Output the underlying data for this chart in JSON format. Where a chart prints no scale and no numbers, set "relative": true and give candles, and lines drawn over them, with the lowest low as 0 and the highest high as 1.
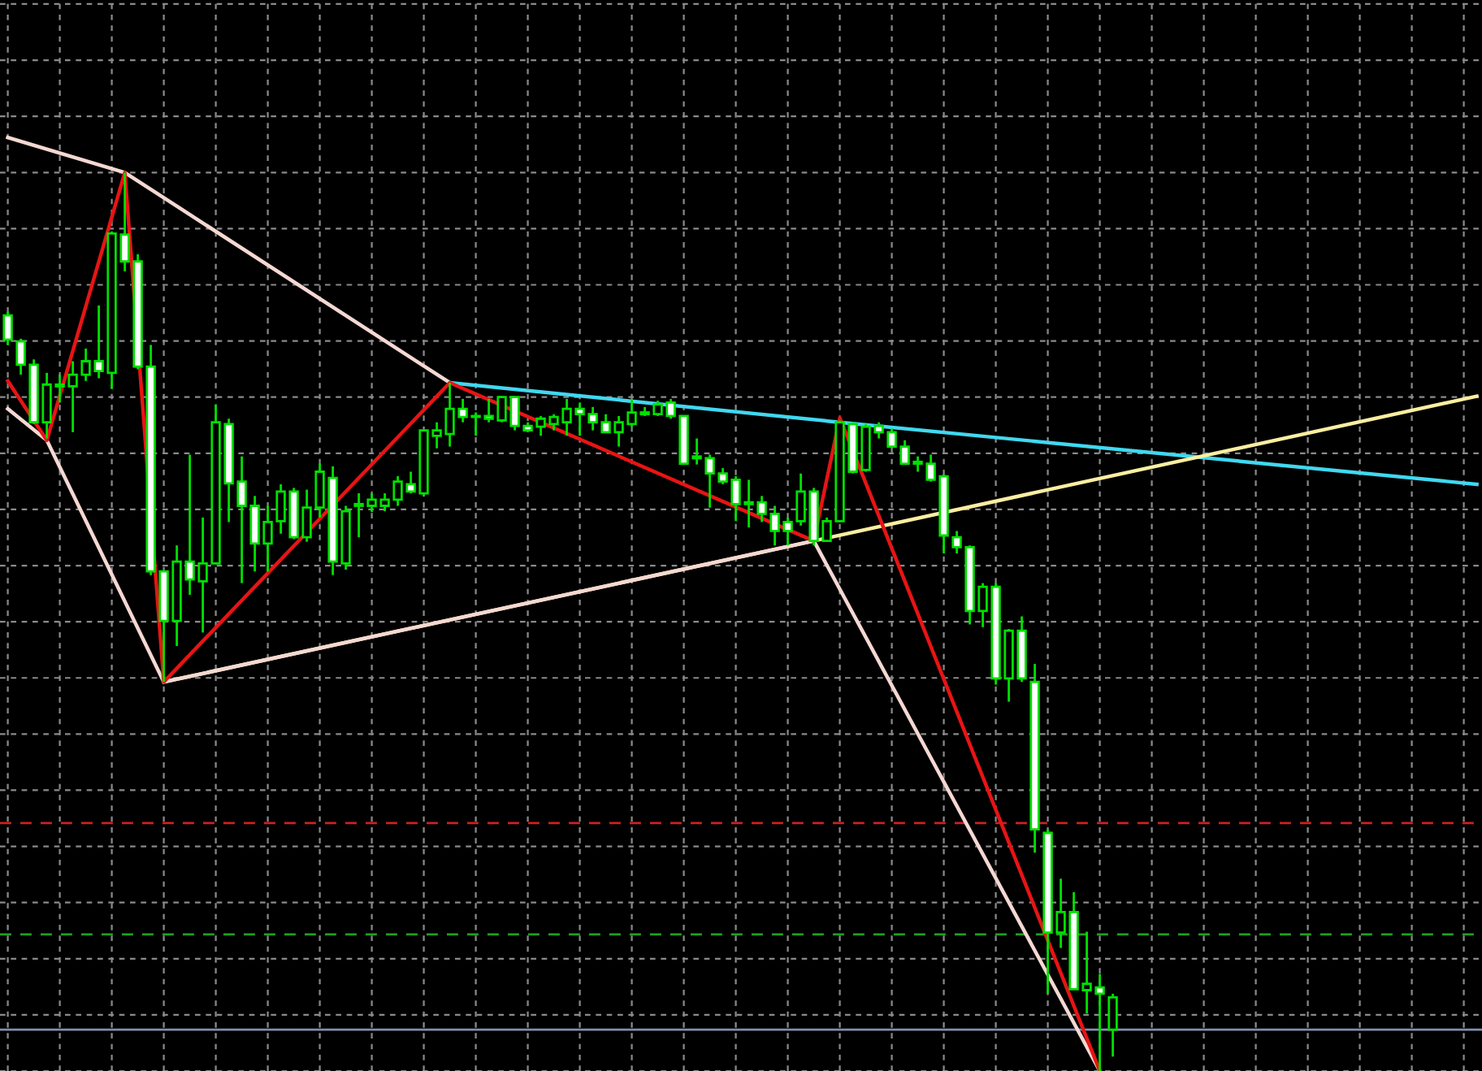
{
  "chart_data": {
    "type": "candlestick",
    "relative": true,
    "grid": true,
    "tick_labels": false,
    "legend": false,
    "color": "#00e000",
    "categories": [
      null,
      null,
      null,
      null,
      null,
      null,
      null,
      null,
      null,
      null,
      null,
      null,
      null,
      null,
      null,
      null,
      null,
      null,
      null,
      null,
      null,
      null,
      null,
      null,
      null,
      null,
      null,
      null,
      null,
      null,
      null,
      null,
      null,
      null,
      null,
      null,
      null,
      null,
      null,
      null,
      null,
      null,
      null,
      null,
      null,
      null,
      null,
      null,
      null,
      null,
      null,
      null,
      null,
      null,
      null,
      null,
      null,
      null,
      null,
      null,
      null,
      null,
      null,
      null,
      null,
      null,
      null,
      null,
      null,
      null,
      null,
      null,
      null,
      null,
      null,
      null,
      null,
      null,
      null,
      null,
      null,
      null,
      null,
      null,
      null,
      null,
      null,
      null,
      null,
      null,
      null,
      null,
      null,
      null,
      null,
      null,
      null,
      null,
      null,
      null,
      null,
      null,
      null,
      null,
      null,
      null,
      null,
      null,
      null,
      null,
      null,
      null,
      null,
      null
    ],
    "ohlc": [
      [
        0.841,
        0.845,
        0.808,
        0.814
      ],
      [
        0.812,
        0.815,
        0.775,
        0.786
      ],
      [
        0.786,
        0.792,
        0.72,
        0.722
      ],
      [
        0.722,
        0.777,
        0.704,
        0.764
      ],
      [
        0.762,
        0.775,
        0.744,
        0.764
      ],
      [
        0.762,
        0.79,
        0.711,
        0.775
      ],
      [
        0.775,
        0.804,
        0.768,
        0.79
      ],
      [
        0.79,
        0.852,
        0.771,
        0.779
      ],
      [
        0.777,
        0.934,
        0.759,
        0.932
      ],
      [
        0.931,
        1.0,
        0.89,
        0.901
      ],
      [
        0.901,
        0.909,
        0.781,
        0.784
      ],
      [
        0.784,
        0.808,
        0.552,
        0.556
      ],
      [
        0.556,
        0.556,
        0.433,
        0.501
      ],
      [
        0.501,
        0.585,
        0.473,
        0.567
      ],
      [
        0.567,
        0.686,
        0.53,
        0.547
      ],
      [
        0.545,
        0.616,
        0.488,
        0.565
      ],
      [
        0.565,
        0.742,
        0.565,
        0.722
      ],
      [
        0.72,
        0.726,
        0.611,
        0.654
      ],
      [
        0.656,
        0.684,
        0.543,
        0.629
      ],
      [
        0.629,
        0.64,
        0.556,
        0.587
      ],
      [
        0.587,
        0.629,
        0.556,
        0.611
      ],
      [
        0.612,
        0.653,
        0.598,
        0.645
      ],
      [
        0.645,
        0.649,
        0.592,
        0.594
      ],
      [
        0.594,
        0.647,
        0.589,
        0.627
      ],
      [
        0.627,
        0.676,
        0.616,
        0.667
      ],
      [
        0.66,
        0.673,
        0.552,
        0.567
      ],
      [
        0.565,
        0.629,
        0.558,
        0.623
      ],
      [
        0.629,
        0.643,
        0.594,
        0.631
      ],
      [
        0.629,
        0.643,
        0.622,
        0.636
      ],
      [
        0.629,
        0.643,
        0.623,
        0.636
      ],
      [
        0.636,
        0.662,
        0.629,
        0.656
      ],
      [
        0.653,
        0.667,
        0.643,
        0.645
      ],
      [
        0.643,
        0.713,
        0.64,
        0.713
      ],
      [
        0.707,
        0.722,
        0.693,
        0.713
      ],
      [
        0.709,
        0.766,
        0.695,
        0.737
      ],
      [
        0.737,
        0.748,
        0.722,
        0.728
      ],
      [
        0.728,
        0.733,
        0.707,
        0.729
      ],
      [
        0.729,
        0.748,
        0.722,
        0.726
      ],
      [
        0.724,
        0.751,
        0.722,
        0.75
      ],
      [
        0.75,
        0.751,
        0.713,
        0.718
      ],
      [
        0.718,
        0.722,
        0.711,
        0.713
      ],
      [
        0.717,
        0.729,
        0.707,
        0.726
      ],
      [
        0.72,
        0.731,
        0.713,
        0.728
      ],
      [
        0.722,
        0.748,
        0.707,
        0.737
      ],
      [
        0.737,
        0.744,
        0.707,
        0.731
      ],
      [
        0.731,
        0.739,
        0.713,
        0.722
      ],
      [
        0.722,
        0.731,
        0.711,
        0.711
      ],
      [
        0.711,
        0.729,
        0.695,
        0.722
      ],
      [
        0.72,
        0.748,
        0.717,
        0.733
      ],
      [
        0.731,
        0.739,
        0.729,
        0.733
      ],
      [
        0.731,
        0.746,
        0.729,
        0.742
      ],
      [
        0.744,
        0.748,
        0.726,
        0.729
      ],
      [
        0.729,
        0.729,
        0.675,
        0.676
      ],
      [
        0.682,
        0.704,
        0.675,
        0.684
      ],
      [
        0.682,
        0.686,
        0.627,
        0.665
      ],
      [
        0.665,
        0.671,
        0.653,
        0.656
      ],
      [
        0.658,
        0.662,
        0.612,
        0.631
      ],
      [
        0.631,
        0.658,
        0.605,
        0.633
      ],
      [
        0.633,
        0.64,
        0.611,
        0.62
      ],
      [
        0.62,
        0.629,
        0.585,
        0.601
      ],
      [
        0.611,
        0.616,
        0.585,
        0.601
      ],
      [
        0.612,
        0.665,
        0.607,
        0.645
      ],
      [
        0.645,
        0.649,
        0.585,
        0.59
      ],
      [
        0.59,
        0.616,
        0.589,
        0.612
      ],
      [
        0.612,
        0.724,
        0.611,
        0.722
      ],
      [
        0.72,
        0.722,
        0.665,
        0.667
      ],
      [
        0.669,
        0.72,
        0.667,
        0.717
      ],
      [
        0.718,
        0.722,
        0.704,
        0.711
      ],
      [
        0.711,
        0.715,
        0.693,
        0.695
      ],
      [
        0.695,
        0.702,
        0.675,
        0.676
      ],
      [
        0.676,
        0.684,
        0.667,
        0.678
      ],
      [
        0.676,
        0.686,
        0.656,
        0.658
      ],
      [
        0.662,
        0.664,
        0.576,
        0.596
      ],
      [
        0.594,
        0.601,
        0.576,
        0.583
      ],
      [
        0.583,
        0.585,
        0.497,
        0.512
      ],
      [
        0.512,
        0.543,
        0.494,
        0.539
      ],
      [
        0.539,
        0.543,
        0.43,
        0.437
      ],
      [
        0.437,
        0.492,
        0.411,
        0.49
      ],
      [
        0.49,
        0.506,
        0.433,
        0.437
      ],
      [
        0.433,
        0.453,
        0.243,
        0.269
      ],
      [
        0.265,
        0.269,
        0.086,
        0.154
      ],
      [
        0.154,
        0.214,
        0.137,
        0.177
      ],
      [
        0.177,
        0.199,
        0.091,
        0.091
      ],
      [
        0.09,
        0.155,
        0.064,
        0.097
      ],
      [
        0.093,
        0.108,
        0.0,
        0.086
      ],
      [
        0.046,
        0.086,
        0.016,
        0.082
      ],
      null,
      null,
      null,
      null,
      null,
      null,
      null,
      null,
      null,
      null,
      null,
      null,
      null,
      null,
      null,
      null,
      null,
      null,
      null,
      null,
      null,
      null,
      null,
      null,
      null,
      null,
      null,
      null
    ],
    "series": [
      {
        "type": "line",
        "color": "#e81414",
        "values": [
          0.768,
          null,
          null,
          0.702,
          null,
          null,
          null,
          null,
          null,
          1.0,
          null,
          null,
          0.433,
          null,
          null,
          null,
          null,
          null,
          null,
          null,
          null,
          null,
          null,
          null,
          null,
          null,
          null,
          null,
          null,
          null,
          null,
          null,
          null,
          null,
          0.766,
          null,
          null,
          null,
          null,
          null,
          null,
          null,
          null,
          null,
          null,
          null,
          null,
          null,
          null,
          null,
          null,
          null,
          null,
          null,
          null,
          null,
          null,
          null,
          null,
          null,
          null,
          null,
          0.59,
          null,
          0.727,
          null,
          null,
          null,
          null,
          null,
          null,
          null,
          null,
          null,
          null,
          null,
          null,
          null,
          null,
          null,
          null,
          null,
          null,
          null,
          0.0,
          null,
          null,
          null,
          null,
          null,
          null,
          null,
          null,
          null,
          null,
          null,
          null,
          null,
          null,
          null,
          null,
          null,
          null,
          null,
          null,
          null,
          null,
          null,
          null,
          null,
          null,
          null,
          null,
          null
        ]
      },
      {
        "type": "line",
        "color": "#f5d8d2",
        "values": [
          1.039,
          null,
          null,
          null,
          null,
          null,
          null,
          null,
          null,
          1.0,
          null,
          null,
          null,
          null,
          null,
          null,
          null,
          null,
          null,
          null,
          null,
          null,
          null,
          null,
          null,
          null,
          null,
          null,
          null,
          null,
          null,
          null,
          null,
          null,
          0.766,
          null,
          null,
          null,
          null,
          null,
          null,
          null,
          null,
          null,
          null,
          null,
          null,
          null,
          null,
          null,
          null,
          null,
          null,
          null,
          null,
          null,
          null,
          null,
          null,
          null,
          null,
          null,
          null,
          null,
          null,
          null,
          null,
          null,
          null,
          null,
          null,
          null,
          null,
          null,
          null,
          null,
          null,
          null,
          null,
          null,
          null,
          null,
          null,
          null,
          null,
          null,
          null,
          null,
          null,
          null,
          null,
          null,
          null,
          null,
          null,
          null,
          null,
          null,
          null,
          null,
          null,
          null,
          null,
          null,
          null,
          null,
          null,
          null,
          null,
          null,
          null,
          null,
          null,
          null
        ]
      },
      {
        "type": "line",
        "color": "#f5d8d2",
        "values": [
          0.737,
          null,
          null,
          0.702,
          null,
          null,
          null,
          null,
          null,
          null,
          null,
          null,
          0.433,
          null,
          null,
          null,
          null,
          null,
          null,
          null,
          null,
          null,
          null,
          null,
          null,
          null,
          null,
          null,
          null,
          null,
          null,
          null,
          null,
          null,
          null,
          null,
          null,
          null,
          null,
          null,
          null,
          null,
          null,
          null,
          null,
          null,
          null,
          null,
          null,
          null,
          null,
          null,
          null,
          null,
          null,
          null,
          null,
          null,
          null,
          null,
          null,
          null,
          0.59,
          null,
          null,
          null,
          null,
          null,
          null,
          null,
          null,
          null,
          null,
          null,
          null,
          null,
          null,
          null,
          null,
          null,
          null,
          null,
          null,
          null,
          0.0,
          null,
          null,
          null,
          null,
          null,
          null,
          null,
          null,
          null,
          null,
          null,
          null,
          null,
          null,
          null,
          null,
          null,
          null,
          null,
          null,
          null,
          null,
          null,
          null,
          null,
          null,
          null,
          null,
          null
        ]
      },
      {
        "type": "line",
        "color": "#fbeea0",
        "values": [
          null,
          null,
          null,
          null,
          null,
          null,
          null,
          null,
          null,
          null,
          null,
          null,
          0.433,
          null,
          null,
          null,
          null,
          null,
          null,
          null,
          null,
          null,
          null,
          null,
          null,
          null,
          null,
          null,
          null,
          null,
          null,
          null,
          null,
          null,
          null,
          null,
          null,
          null,
          null,
          null,
          null,
          null,
          null,
          null,
          null,
          null,
          null,
          null,
          null,
          null,
          null,
          null,
          null,
          null,
          null,
          null,
          null,
          null,
          null,
          null,
          null,
          null,
          0.59,
          null,
          null,
          null,
          null,
          null,
          null,
          null,
          null,
          null,
          null,
          null,
          null,
          null,
          null,
          null,
          null,
          null,
          null,
          null,
          null,
          null,
          null,
          null,
          null,
          null,
          null,
          null,
          null,
          null,
          null,
          null,
          null,
          null,
          null,
          null,
          null,
          null,
          null,
          null,
          null,
          null,
          null,
          null,
          null,
          null,
          null,
          null,
          null,
          null,
          null,
          0.751
        ]
      },
      {
        "type": "line",
        "color": "#40d8f0",
        "values": [
          null,
          null,
          null,
          null,
          null,
          null,
          null,
          null,
          null,
          null,
          null,
          null,
          null,
          null,
          null,
          null,
          null,
          null,
          null,
          null,
          null,
          null,
          null,
          null,
          null,
          null,
          null,
          null,
          null,
          null,
          null,
          null,
          null,
          null,
          0.766,
          null,
          null,
          null,
          null,
          null,
          null,
          null,
          null,
          null,
          null,
          null,
          null,
          null,
          null,
          null,
          null,
          null,
          null,
          null,
          null,
          null,
          null,
          null,
          null,
          null,
          null,
          null,
          null,
          null,
          0.722,
          null,
          null,
          null,
          null,
          null,
          null,
          null,
          null,
          null,
          null,
          null,
          null,
          null,
          null,
          null,
          null,
          null,
          null,
          null,
          null,
          null,
          null,
          null,
          null,
          null,
          null,
          null,
          null,
          null,
          null,
          null,
          null,
          null,
          null,
          null,
          null,
          null,
          null,
          null,
          null,
          null,
          null,
          null,
          null,
          null,
          null,
          null,
          null,
          0.653
        ]
      }
    ],
    "ref_lines": [
      {
        "axis": "y",
        "value": 0.276,
        "color": "#d02020",
        "line_style": "dashed"
      },
      {
        "axis": "y",
        "value": 0.152,
        "color": "#20a020",
        "line_style": "dashed"
      },
      {
        "axis": "y",
        "value": 0.046,
        "color": "#8090b0",
        "line_style": "solid"
      }
    ]
  }
}
